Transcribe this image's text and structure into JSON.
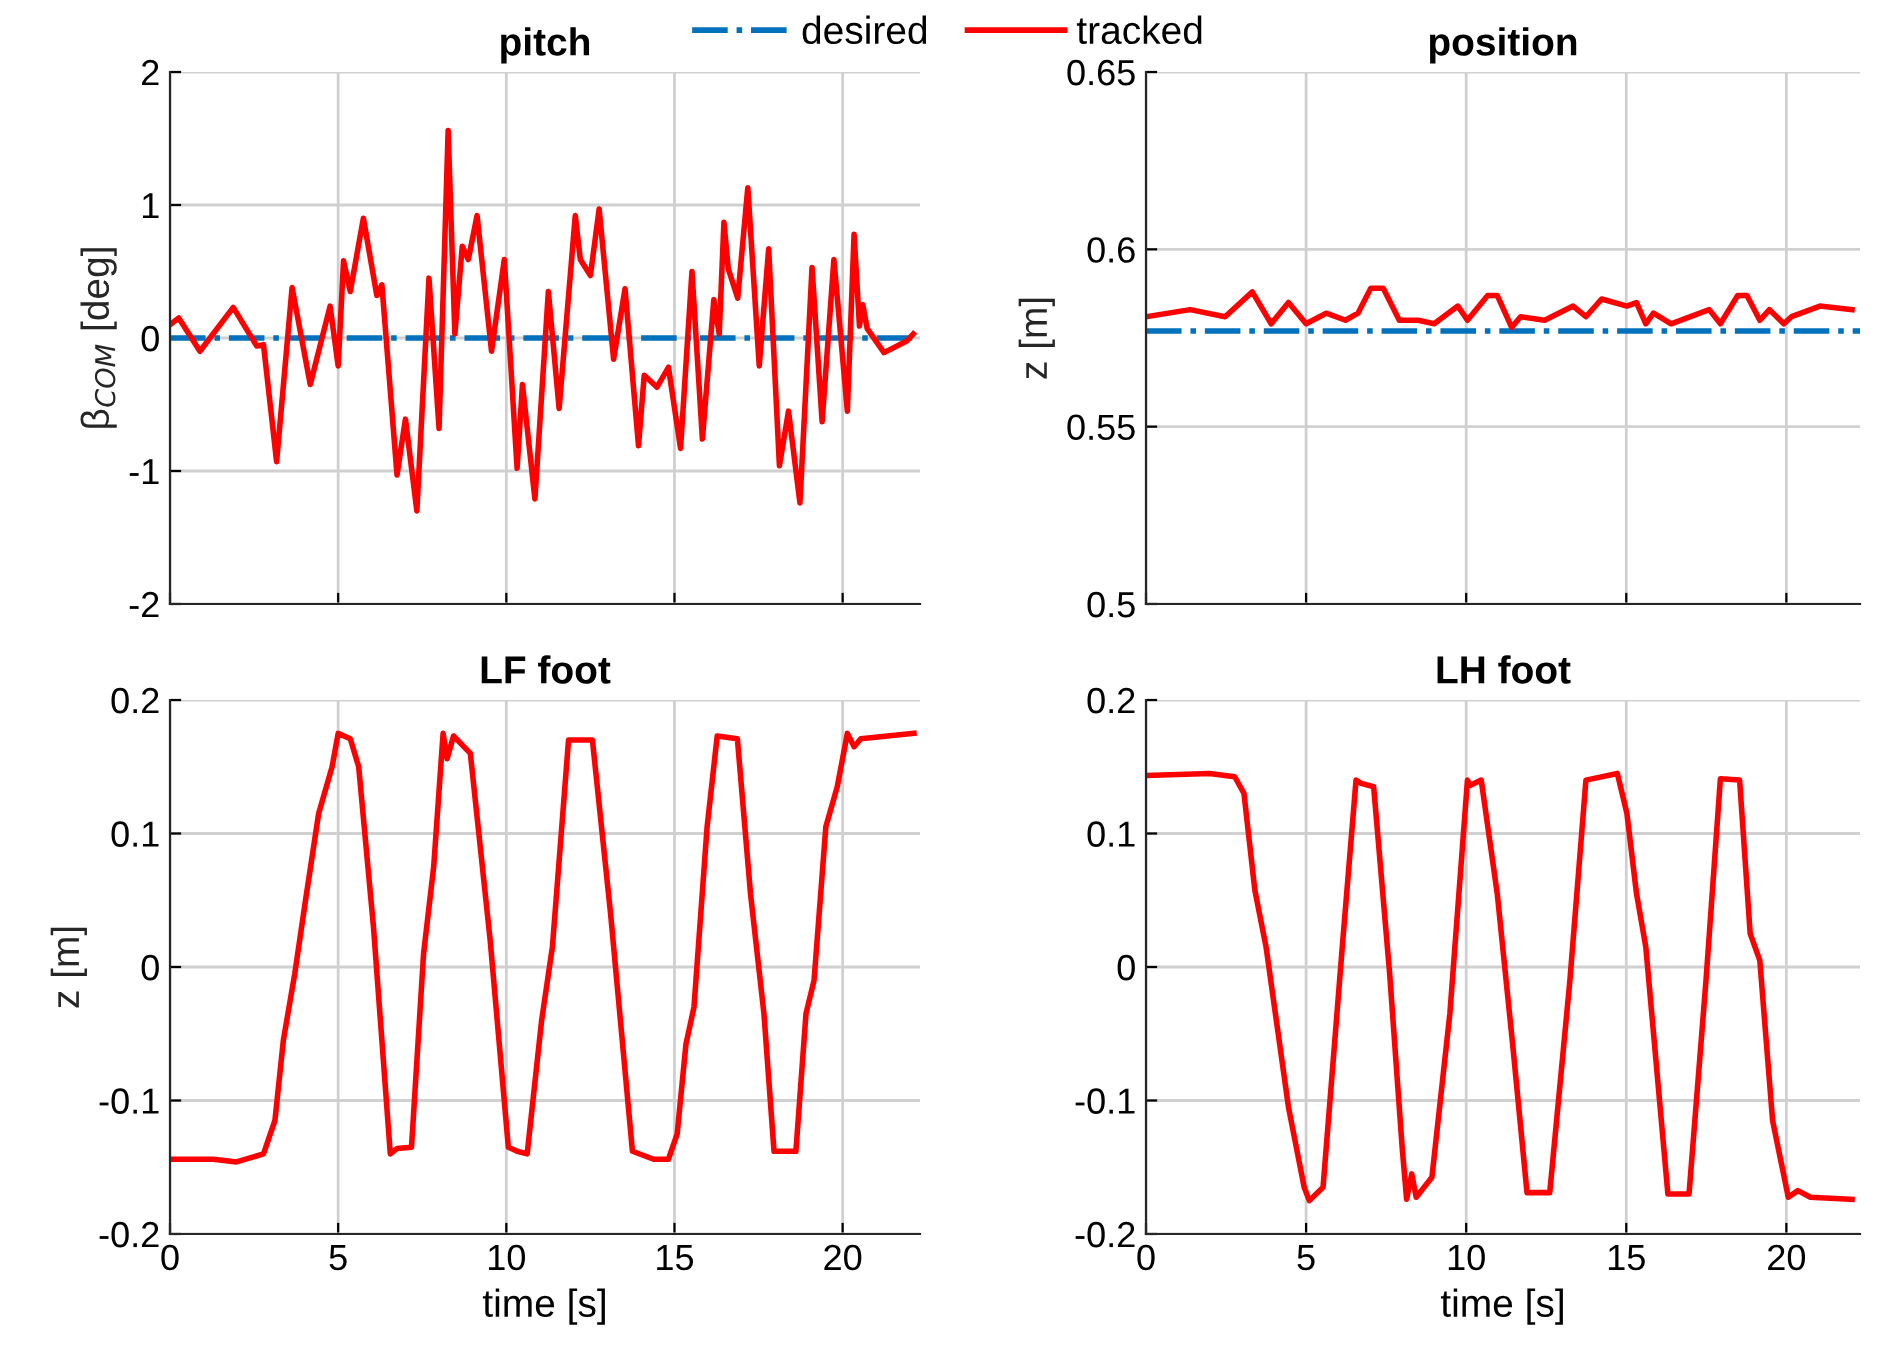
{
  "chart_data": [
    {
      "type": "line",
      "title": "pitch",
      "ylabel": "β$_{COM}$ [deg]",
      "xlim": [
        0,
        22.3
      ],
      "xticks": [
        0,
        5,
        10,
        15,
        20
      ],
      "ylim": [
        -2,
        2
      ],
      "yticks": [
        -2,
        -1,
        0,
        1,
        2
      ],
      "grid": true,
      "legend": "top",
      "tick_labels": "y",
      "series": [
        {
          "name": "desired",
          "color": "#0072bd",
          "line_style": "dashdot",
          "x": [
            0,
            22.3
          ],
          "values": [
            0,
            0
          ]
        },
        {
          "name": "tracked",
          "color": "#ff0000",
          "line_style": "solid",
          "x": [
            0,
            0.26,
            0.89,
            1.88,
            2.58,
            2.78,
            3.17,
            3.63,
            4.17,
            4.76,
            5.0,
            5.16,
            5.36,
            5.75,
            6.15,
            6.3,
            6.75,
            7.0,
            7.34,
            7.7,
            8.0,
            8.27,
            8.47,
            8.69,
            8.87,
            9.13,
            9.56,
            9.94,
            10.32,
            10.48,
            10.85,
            11.25,
            11.57,
            12.05,
            12.2,
            12.5,
            12.76,
            13.19,
            13.53,
            13.93,
            14.1,
            14.48,
            14.82,
            15.18,
            15.52,
            15.83,
            16.17,
            16.33,
            16.47,
            16.6,
            16.88,
            17.18,
            17.52,
            17.8,
            18.12,
            18.39,
            18.73,
            19.09,
            19.39,
            19.74,
            20.14,
            20.34,
            20.5,
            20.6,
            20.73,
            21.23,
            21.92,
            22.1
          ],
          "values": [
            0.1,
            0.15,
            -0.1,
            0.23,
            -0.06,
            -0.05,
            -0.93,
            0.38,
            -0.35,
            0.24,
            -0.21,
            0.58,
            0.35,
            0.9,
            0.32,
            0.4,
            -1.03,
            -0.61,
            -1.3,
            0.45,
            -0.68,
            1.56,
            0.03,
            0.69,
            0.59,
            0.92,
            -0.1,
            0.59,
            -0.98,
            -0.35,
            -1.21,
            0.35,
            -0.53,
            0.92,
            0.59,
            0.47,
            0.97,
            -0.16,
            0.37,
            -0.81,
            -0.28,
            -0.37,
            -0.22,
            -0.83,
            0.5,
            -0.76,
            0.29,
            0.03,
            0.87,
            0.52,
            0.3,
            1.13,
            -0.21,
            0.67,
            -0.96,
            -0.55,
            -1.24,
            0.53,
            -0.63,
            0.59,
            -0.55,
            0.78,
            0.09,
            0.25,
            0.07,
            -0.11,
            -0.02,
            0.03
          ]
        }
      ]
    },
    {
      "type": "line",
      "title": "position",
      "ylabel": "z [m]",
      "xlim": [
        0,
        22.3
      ],
      "xticks": [
        0,
        5,
        10,
        15,
        20
      ],
      "ylim": [
        0.5,
        0.65
      ],
      "yticks": [
        0.5,
        0.55,
        0.6,
        0.65
      ],
      "grid": true,
      "tick_labels": "y",
      "series": [
        {
          "color": "#0072bd",
          "line_style": "dashdot",
          "x": [
            0,
            22.3
          ],
          "values": [
            0.577,
            0.577
          ]
        },
        {
          "color": "#ff0000",
          "line_style": "solid",
          "x": [
            0,
            1.38,
            2.47,
            3.32,
            3.91,
            4.45,
            5.0,
            5.63,
            6.23,
            6.62,
            7.02,
            7.41,
            7.91,
            8.5,
            9.0,
            9.74,
            10.04,
            10.67,
            10.97,
            11.42,
            11.7,
            12.45,
            13.34,
            13.74,
            14.23,
            15.02,
            15.32,
            15.61,
            15.85,
            16.4,
            17.59,
            17.94,
            18.48,
            18.77,
            19.17,
            19.47,
            19.92,
            20.16,
            21.05,
            22.05
          ],
          "values": [
            0.581,
            0.583,
            0.581,
            0.588,
            0.579,
            0.585,
            0.579,
            0.582,
            0.58,
            0.582,
            0.589,
            0.589,
            0.58,
            0.58,
            0.579,
            0.584,
            0.58,
            0.587,
            0.587,
            0.578,
            0.581,
            0.58,
            0.584,
            0.581,
            0.586,
            0.584,
            0.585,
            0.579,
            0.582,
            0.579,
            0.583,
            0.579,
            0.587,
            0.587,
            0.58,
            0.583,
            0.579,
            0.581,
            0.584,
            0.583
          ]
        }
      ]
    },
    {
      "type": "line",
      "title": "LF foot",
      "ylabel": "z [m]",
      "xlabel": "time [s]",
      "xlim": [
        0,
        22.3
      ],
      "xticks": [
        0,
        5,
        10,
        15,
        20
      ],
      "ylim": [
        -0.2,
        0.2
      ],
      "yticks": [
        -0.2,
        -0.1,
        0,
        0.1,
        0.2
      ],
      "grid": true,
      "series": [
        {
          "color": "#ff0000",
          "line_style": "solid",
          "x": [
            0,
            1.29,
            1.98,
            2.78,
            3.12,
            3.37,
            3.71,
            4.03,
            4.42,
            4.82,
            5.0,
            5.36,
            5.61,
            6.05,
            6.55,
            6.75,
            7.18,
            7.54,
            7.84,
            8.12,
            8.24,
            8.43,
            8.93,
            9.52,
            10.06,
            10.32,
            10.62,
            11.05,
            11.37,
            11.85,
            12.56,
            13.1,
            13.75,
            14.38,
            14.82,
            15.08,
            15.34,
            15.58,
            15.97,
            16.27,
            16.87,
            17.26,
            17.66,
            17.96,
            18.61,
            18.91,
            19.15,
            19.5,
            19.84,
            20.14,
            20.34,
            20.54,
            22.12
          ],
          "values": [
            -0.144,
            -0.144,
            -0.146,
            -0.14,
            -0.115,
            -0.055,
            -0.005,
            0.05,
            0.115,
            0.15,
            0.175,
            0.171,
            0.15,
            0.03,
            -0.14,
            -0.136,
            -0.135,
            0.01,
            0.075,
            0.175,
            0.156,
            0.173,
            0.16,
            0.02,
            -0.135,
            -0.138,
            -0.14,
            -0.04,
            0.015,
            0.17,
            0.17,
            0.04,
            -0.138,
            -0.144,
            -0.144,
            -0.125,
            -0.058,
            -0.03,
            0.105,
            0.173,
            0.171,
            0.055,
            -0.035,
            -0.138,
            -0.138,
            -0.035,
            -0.01,
            0.105,
            0.135,
            0.175,
            0.165,
            0.171,
            0.175
          ]
        }
      ]
    },
    {
      "type": "line",
      "title": "LH foot",
      "xlabel": "time [s]",
      "xlim": [
        0,
        22.3
      ],
      "xticks": [
        0,
        5,
        10,
        15,
        20
      ],
      "ylim": [
        -0.2,
        0.2
      ],
      "yticks": [
        -0.2,
        -0.1,
        0,
        0.1,
        0.2
      ],
      "grid": true,
      "series": [
        {
          "color": "#ff0000",
          "line_style": "solid",
          "x": [
            0,
            1.98,
            2.77,
            3.06,
            3.4,
            3.75,
            4.45,
            4.94,
            5.1,
            5.53,
            6.13,
            6.56,
            6.72,
            7.11,
            7.61,
            8.0,
            8.14,
            8.3,
            8.44,
            8.93,
            9.49,
            10.04,
            10.12,
            10.47,
            10.97,
            11.46,
            11.9,
            12.61,
            13.24,
            13.74,
            14.72,
            15.02,
            15.32,
            15.61,
            16.3,
            16.96,
            17.49,
            17.94,
            18.54,
            18.87,
            19.17,
            19.57,
            20.06,
            20.36,
            20.75,
            22.05
          ],
          "values": [
            0.1435,
            0.145,
            0.1425,
            0.13,
            0.0575,
            0.015,
            -0.105,
            -0.165,
            -0.175,
            -0.165,
            0.015,
            0.14,
            0.1375,
            0.135,
            -0.005,
            -0.135,
            -0.174,
            -0.155,
            -0.1725,
            -0.1575,
            -0.035,
            0.14,
            0.136,
            0.14,
            0.055,
            -0.06,
            -0.169,
            -0.169,
            -0.01,
            0.14,
            0.145,
            0.115,
            0.055,
            0.015,
            -0.17,
            -0.17,
            -0.01,
            0.141,
            0.14,
            0.025,
            0.005,
            -0.115,
            -0.1725,
            -0.1675,
            -0.1725,
            -0.174
          ]
        }
      ]
    }
  ]
}
